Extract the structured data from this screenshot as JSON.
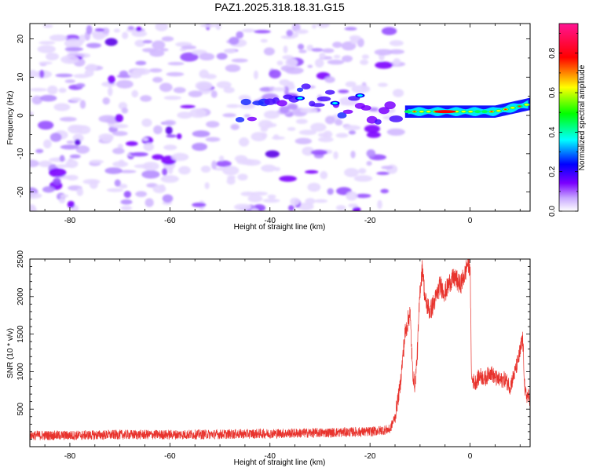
{
  "title": "PAZ1.2025.318.18.31.G15",
  "chart_data": [
    {
      "type": "heatmap",
      "xlabel": "Height of straight line (km)",
      "ylabel": "Frequency (Hz)",
      "xlim": [
        -88,
        12
      ],
      "ylim": [
        -25,
        24
      ],
      "xticks": [
        -80,
        -60,
        -40,
        -20,
        0
      ],
      "yticks": [
        -20,
        -10,
        0,
        10,
        20
      ],
      "noise_region_x": [
        -88,
        -14
      ],
      "signal_band": [
        {
          "x": -46,
          "freq": 1
        },
        {
          "x": -40,
          "freq": 3
        },
        {
          "x": -34,
          "freq": 5
        },
        {
          "x": -30,
          "freq": 4
        },
        {
          "x": -26,
          "freq": 3
        },
        {
          "x": -22,
          "freq": 3
        },
        {
          "x": -18,
          "freq": 0
        },
        {
          "x": -13,
          "freq": 1
        },
        {
          "x": -5,
          "freq": 1
        },
        {
          "x": 0,
          "freq": 1
        },
        {
          "x": 5,
          "freq": 1
        },
        {
          "x": 12,
          "freq": 3
        }
      ],
      "colorbar": {
        "label": "Normalized spectral amplitude",
        "range": [
          0,
          0.95
        ],
        "ticks": [
          0.0,
          0.2,
          0.4,
          0.6,
          0.8
        ],
        "colors": [
          "#ffffff",
          "#7b00ff",
          "#0000ff",
          "#00ffff",
          "#00ff00",
          "#ffff00",
          "#ff0000",
          "#ff1493"
        ]
      }
    },
    {
      "type": "line",
      "xlabel": "Height of straight line (km)",
      "ylabel": "SNR (10 * v/v)",
      "xlim": [
        -88,
        12
      ],
      "ylim": [
        0,
        2500
      ],
      "xticks": [
        -80,
        -60,
        -40,
        -20,
        0
      ],
      "yticks": [
        500,
        1000,
        1500,
        2000,
        2500
      ],
      "color": "#e8332d",
      "series": [
        {
          "name": "SNR",
          "x": [
            -88,
            -80,
            -70,
            -60,
            -50,
            -40,
            -30,
            -20,
            -16,
            -15,
            -14,
            -13,
            -12,
            -11.5,
            -11,
            -10.5,
            -10,
            -9.5,
            -9,
            -8,
            -7,
            -6,
            -5,
            -4,
            -3,
            -2,
            -1,
            -0.5,
            0,
            0.3,
            1,
            2,
            3,
            4,
            5,
            6,
            7,
            8,
            9,
            10,
            10.5,
            11,
            12
          ],
          "values": [
            150,
            150,
            160,
            160,
            165,
            175,
            185,
            200,
            230,
            400,
            800,
            1500,
            1800,
            1000,
            800,
            1300,
            2100,
            2400,
            1950,
            1800,
            1950,
            2150,
            2050,
            2200,
            2250,
            2150,
            2300,
            2450,
            2400,
            900,
            850,
            950,
            900,
            1000,
            920,
            880,
            900,
            800,
            1000,
            1250,
            1450,
            700,
            650
          ]
        }
      ]
    }
  ]
}
